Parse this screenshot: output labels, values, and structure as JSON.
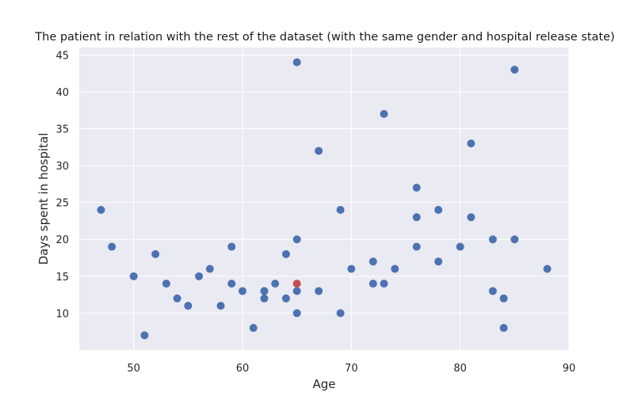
{
  "chart_data": {
    "type": "scatter",
    "title": "The patient in relation with the rest of the dataset (with the same gender and hospital release state)",
    "xlabel": "Age",
    "ylabel": "Days spent in hospital",
    "xlim": [
      45,
      90
    ],
    "ylim": [
      5,
      46
    ],
    "xticks": [
      50,
      60,
      70,
      80,
      90
    ],
    "yticks": [
      10,
      15,
      20,
      25,
      30,
      35,
      40,
      45
    ],
    "grid": true,
    "colors": {
      "background": "#eaeaf2",
      "dataset": "#4c72b0",
      "patient": "#c44e52"
    },
    "series": [
      {
        "points": [
          [
            47,
            24
          ],
          [
            48,
            19
          ],
          [
            50,
            15
          ],
          [
            51,
            7
          ],
          [
            52,
            18
          ],
          [
            53,
            14
          ],
          [
            54,
            12
          ],
          [
            55,
            11
          ],
          [
            56,
            15
          ],
          [
            57,
            16
          ],
          [
            58,
            11
          ],
          [
            59,
            19
          ],
          [
            59,
            14
          ],
          [
            60,
            13
          ],
          [
            61,
            8
          ],
          [
            62,
            13
          ],
          [
            62,
            12
          ],
          [
            63,
            14
          ],
          [
            64,
            18
          ],
          [
            64,
            12
          ],
          [
            65,
            44
          ],
          [
            65,
            20
          ],
          [
            65,
            13
          ],
          [
            65,
            10
          ],
          [
            67,
            32
          ],
          [
            67,
            13
          ],
          [
            69,
            24
          ],
          [
            69,
            10
          ],
          [
            70,
            16
          ],
          [
            72,
            17
          ],
          [
            72,
            14
          ],
          [
            73,
            37
          ],
          [
            73,
            14
          ],
          [
            74,
            16
          ],
          [
            76,
            27
          ],
          [
            76,
            23
          ],
          [
            76,
            19
          ],
          [
            78,
            24
          ],
          [
            78,
            17
          ],
          [
            80,
            19
          ],
          [
            81,
            33
          ],
          [
            81,
            23
          ],
          [
            83,
            20
          ],
          [
            83,
            13
          ],
          [
            84,
            12
          ],
          [
            84,
            8
          ],
          [
            85,
            43
          ],
          [
            85,
            20
          ],
          [
            88,
            16
          ]
        ]
      },
      {
        "points": [
          [
            65,
            14
          ]
        ]
      }
    ]
  }
}
